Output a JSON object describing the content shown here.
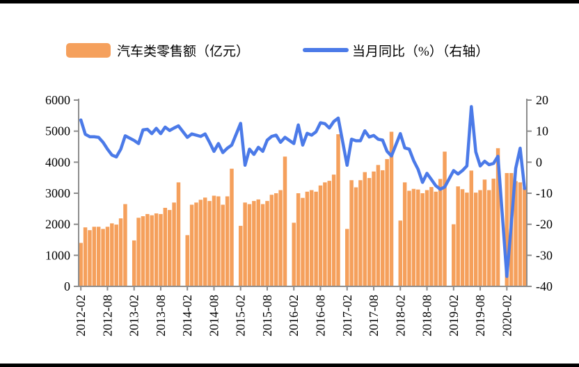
{
  "page": {
    "background": "#ffffff",
    "border_color": "#000000"
  },
  "legend": {
    "bar": {
      "label": "汽车类零售额（亿元）",
      "color": "#F5A05C"
    },
    "line": {
      "label": "当月同比（%）（右轴）",
      "color": "#4B7AE8"
    }
  },
  "chart_data": {
    "type": "combo-bar-line",
    "title": "",
    "xlabel": "",
    "left_axis": {
      "label": "汽车类零售额（亿元）",
      "min": 0,
      "max": 6000,
      "step": 1000,
      "tick_labels": [
        "0",
        "1000",
        "2000",
        "3000",
        "4000",
        "5000",
        "6000"
      ]
    },
    "right_axis": {
      "label": "当月同比（%）",
      "min": -40,
      "max": 20,
      "step": 10,
      "tick_labels": [
        "-40",
        "-30",
        "-20",
        "-10",
        "0",
        "10",
        "20"
      ]
    },
    "x_tick_label_every": 6,
    "x_tick_labels": [
      "2012-02",
      "2012-08",
      "2013-02",
      "2013-08",
      "2014-02",
      "2014-08",
      "2015-02",
      "2015-08",
      "2016-02",
      "2016-08",
      "2017-02",
      "2017-08",
      "2018-02",
      "2018-08",
      "2019-02",
      "2019-08",
      "2020-02"
    ],
    "grid": false,
    "axis_color": "#8C8C8C",
    "categories": [
      "2012-02",
      "2012-03",
      "2012-04",
      "2012-05",
      "2012-06",
      "2012-07",
      "2012-08",
      "2012-09",
      "2012-10",
      "2012-11",
      "2012-12",
      "2013-01",
      "2013-02",
      "2013-03",
      "2013-04",
      "2013-05",
      "2013-06",
      "2013-07",
      "2013-08",
      "2013-09",
      "2013-10",
      "2013-11",
      "2013-12",
      "2014-01",
      "2014-02",
      "2014-03",
      "2014-04",
      "2014-05",
      "2014-06",
      "2014-07",
      "2014-08",
      "2014-09",
      "2014-10",
      "2014-11",
      "2014-12",
      "2015-01",
      "2015-02",
      "2015-03",
      "2015-04",
      "2015-05",
      "2015-06",
      "2015-07",
      "2015-08",
      "2015-09",
      "2015-10",
      "2015-11",
      "2015-12",
      "2016-01",
      "2016-02",
      "2016-03",
      "2016-04",
      "2016-05",
      "2016-06",
      "2016-07",
      "2016-08",
      "2016-09",
      "2016-10",
      "2016-11",
      "2016-12",
      "2017-01",
      "2017-02",
      "2017-03",
      "2017-04",
      "2017-05",
      "2017-06",
      "2017-07",
      "2017-08",
      "2017-09",
      "2017-10",
      "2017-11",
      "2017-12",
      "2018-01",
      "2018-02",
      "2018-03",
      "2018-04",
      "2018-05",
      "2018-06",
      "2018-07",
      "2018-08",
      "2018-09",
      "2018-10",
      "2018-11",
      "2018-12",
      "2019-01",
      "2019-02",
      "2019-03",
      "2019-04",
      "2019-05",
      "2019-06",
      "2019-07",
      "2019-08",
      "2019-09",
      "2019-10",
      "2019-11",
      "2019-12",
      "2020-01",
      "2020-02",
      "2020-03",
      "2020-04",
      "2020-05",
      "2020-06"
    ],
    "series": [
      {
        "name": "汽车类零售额（亿元）",
        "type": "bar",
        "axis": "left",
        "color": "#F5A05C",
        "values": [
          1400,
          1900,
          1810,
          1920,
          1920,
          1850,
          1920,
          2030,
          1990,
          2190,
          2650,
          null,
          1480,
          2210,
          2260,
          2330,
          2290,
          2350,
          2330,
          2530,
          2460,
          2700,
          3350,
          null,
          1650,
          2630,
          2700,
          2790,
          2860,
          2750,
          2920,
          2900,
          2630,
          2900,
          3790,
          null,
          1950,
          2700,
          2650,
          2750,
          2800,
          2650,
          2750,
          2950,
          3000,
          3100,
          4180,
          null,
          2050,
          3000,
          2850,
          3050,
          3100,
          3050,
          3250,
          3350,
          3400,
          3600,
          4900,
          null,
          1850,
          3420,
          3190,
          3420,
          3680,
          3490,
          3700,
          3910,
          3740,
          4100,
          4980,
          null,
          2120,
          3350,
          3080,
          3140,
          3120,
          3000,
          3100,
          3200,
          3050,
          3460,
          4340,
          null,
          2000,
          3220,
          3130,
          3020,
          3730,
          3020,
          3100,
          3440,
          3100,
          3470,
          4450,
          null,
          3650,
          3650,
          3390,
          3350,
          3170
        ]
      },
      {
        "name": "当月同比（%）（右轴）",
        "type": "line",
        "axis": "right",
        "color": "#4B7AE8",
        "values": [
          13.6,
          9.0,
          8.2,
          8.2,
          8.0,
          6.4,
          4.2,
          2.3,
          1.7,
          4.2,
          8.5,
          null,
          7.0,
          6.0,
          10.4,
          10.6,
          9.2,
          10.9,
          9.2,
          11.3,
          10.2,
          11.0,
          11.7,
          null,
          8.0,
          9.1,
          8.7,
          8.3,
          9.1,
          6.4,
          3.5,
          6.0,
          3.1,
          4.5,
          5.5,
          null,
          12.5,
          -1.0,
          4.2,
          2.5,
          4.8,
          3.5,
          7.1,
          8.3,
          8.7,
          6.4,
          8.0,
          null,
          6.0,
          12.0,
          5.5,
          9.3,
          8.7,
          9.8,
          12.7,
          12.4,
          11.0,
          13.1,
          14.2,
          null,
          -1.0,
          7.4,
          6.9,
          6.9,
          10.1,
          8.1,
          8.6,
          7.4,
          7.1,
          3.5,
          2.0,
          null,
          9.2,
          4.6,
          4.2,
          0.5,
          -2.3,
          -6.5,
          -3.6,
          -5.6,
          -7.6,
          -8.7,
          -8.0,
          null,
          -2.7,
          -3.8,
          -2.7,
          -1.2,
          17.9,
          3.3,
          -1.2,
          0.3,
          -0.8,
          -0.4,
          1.9,
          null,
          -36.8,
          -20.0,
          -2.0,
          4.5,
          -8.5
        ]
      }
    ]
  }
}
